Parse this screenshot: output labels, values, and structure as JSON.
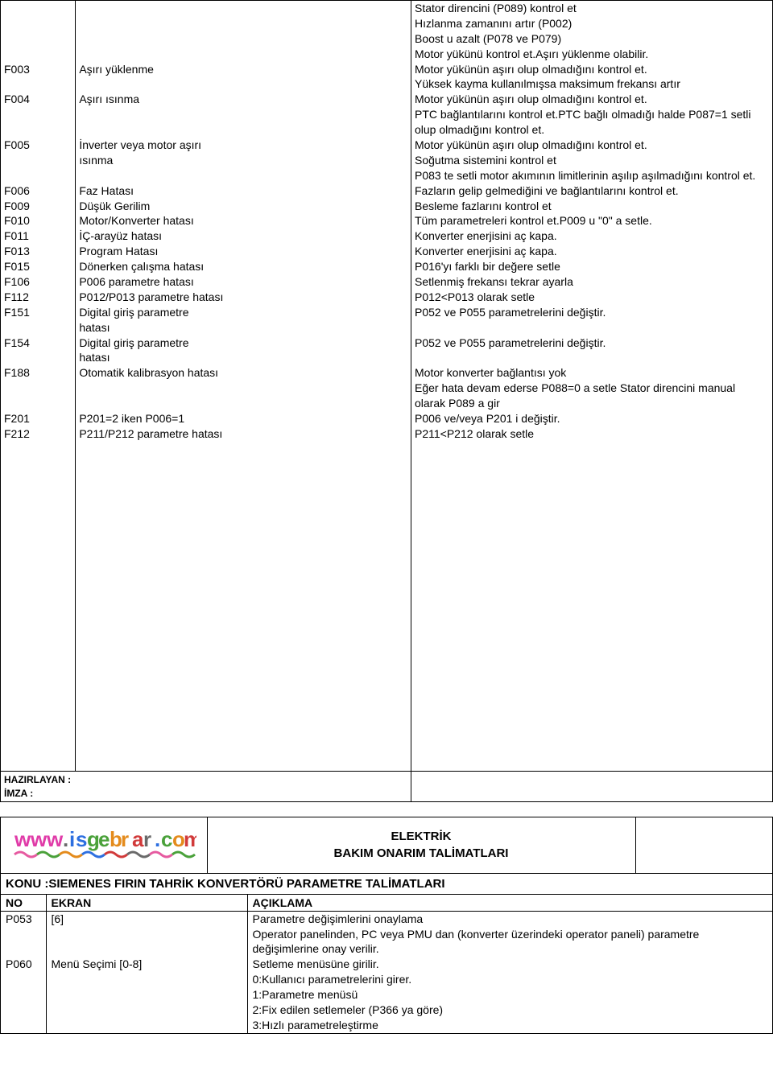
{
  "faults": {
    "pre_desc": [
      "Stator direncini (P089) kontrol et",
      "Hızlanma zamanını artır (P002)",
      "Boost u azalt (P078 ve P079)",
      "Motor yükünü kontrol et.Aşırı yüklenme olabilir."
    ],
    "rows": [
      {
        "code": "F003",
        "name": "Aşırı yüklenme",
        "desc": [
          "Motor yükünün aşırı olup olmadığını kontrol et.",
          "Yüksek kayma kullanılmışsa maksimum frekansı artır"
        ]
      },
      {
        "code": "F004",
        "name": "Aşırı ısınma",
        "desc": [
          "Motor yükünün aşırı olup olmadığını kontrol et.",
          "PTC bağlantılarını kontrol et.PTC bağlı olmadığı halde P087=1 setli olup olmadığını kontrol et."
        ]
      },
      {
        "code": "F005",
        "name": "İnverter veya motor aşırı ısınma",
        "desc": [
          "Motor yükünün aşırı olup olmadığını kontrol et.",
          "Soğutma sistemini kontrol et",
          "P083 te setli motor akımının limitlerinin aşılıp aşılmadığını kontrol et."
        ]
      },
      {
        "code": "F006",
        "name": "Faz Hatası",
        "desc": [
          "Fazların gelip gelmediğini ve bağlantılarını kontrol et."
        ]
      },
      {
        "code": "F009",
        "name": "Düşük Gerilim",
        "desc": [
          "Besleme fazlarını kontrol et"
        ]
      },
      {
        "code": "F010",
        "name": "Motor/Konverter hatası",
        "desc": [
          "Tüm parametreleri kontrol  et.P009 u  \"0\" a setle."
        ]
      },
      {
        "code": "F011",
        "name": "İÇ-arayüz hatası",
        "desc": [
          "Konverter enerjisini aç kapa."
        ]
      },
      {
        "code": "F013",
        "name": "Program Hatası",
        "desc": [
          "Konverter enerjisini aç kapa."
        ]
      },
      {
        "code": "F015",
        "name": "Dönerken çalışma hatası",
        "desc": [
          "P016'yı farklı bir değere setle"
        ]
      },
      {
        "code": "F106",
        "name": "P006 parametre hatası",
        "desc": [
          "Setlenmiş frekansı  tekrar ayarla"
        ]
      },
      {
        "code": "F112",
        "name": "P012/P013 parametre hatası",
        "desc": [
          "P012<P013 olarak setle"
        ]
      },
      {
        "code": "F151",
        "name": "Digital giriş parametre hatası",
        "desc": [
          "P052 ve P055 parametrelerini değiştir."
        ]
      },
      {
        "code": "F154",
        "name": "Digital giriş parametre hatası",
        "desc": [
          "P052 ve P055 parametrelerini değiştir."
        ]
      },
      {
        "code": "F188",
        "name": "Otomatik kalibrasyon hatası",
        "desc": [
          "Motor konverter bağlantısı yok",
          "Eğer hata devam ederse P088=0  a setle Stator direncini manual olarak P089 a gir"
        ]
      },
      {
        "code": "F201",
        "name": "P201=2 iken P006=1",
        "desc": [
          "P006 ve/veya P201 i değiştir."
        ]
      },
      {
        "code": "F212",
        "name": "P211/P212 parametre hatası",
        "desc": [
          "P211<P212 olarak setle"
        ]
      }
    ]
  },
  "footer": {
    "hazirlayan": "HAZIRLAYAN :",
    "imza": "İMZA             :"
  },
  "section2": {
    "logo_text": "www.isgebrar.com",
    "logo_colors": [
      "#e03ba8",
      "#e03ba8",
      "#e03ba8",
      "#6a6a6a",
      "#2d6fe0",
      "#2d6fe0",
      "#4aa13a",
      "#4aa13a",
      "#e48b1c",
      "#e48b1c",
      "#d13a3a",
      "#6a6a6a",
      "#2d6fe0",
      "#4aa13a",
      "#e48b1c",
      "#d13a3a"
    ],
    "underline_colors": [
      "#e65aa0",
      "#4aa13a",
      "#e48b1c",
      "#2d6fe0",
      "#d13a3a",
      "#6a6a6a",
      "#e65aa0",
      "#4aa13a"
    ],
    "title_line1": "ELEKTRİK",
    "title_line2": "BAKIM ONARIM TALİMATLARI",
    "konu": "KONU :SIEMENES FIRIN TAHRİK KONVERTÖRÜ PARAMETRE TALİMATLARI",
    "head": {
      "no": "NO",
      "ekran": "EKRAN",
      "aciklama": "AÇIKLAMA"
    },
    "params": [
      {
        "no": "P053",
        "ekran": "[6]",
        "desc": [
          "Parametre değişimlerini onaylama",
          "Operator panelinden, PC  veya PMU dan (konverter üzerindeki operator paneli) parametre değişimlerine onay verilir."
        ]
      },
      {
        "no": "P060",
        "ekran": "Menü Seçimi [0-8]",
        "desc": [
          "Setleme menüsüne girilir.",
          "0:Kullanıcı parametrelerini girer.",
          "1:Parametre menüsü",
          "2:Fix edilen setlemeler (P366 ya göre)",
          "3:Hızlı parametreleştirme"
        ]
      }
    ]
  }
}
